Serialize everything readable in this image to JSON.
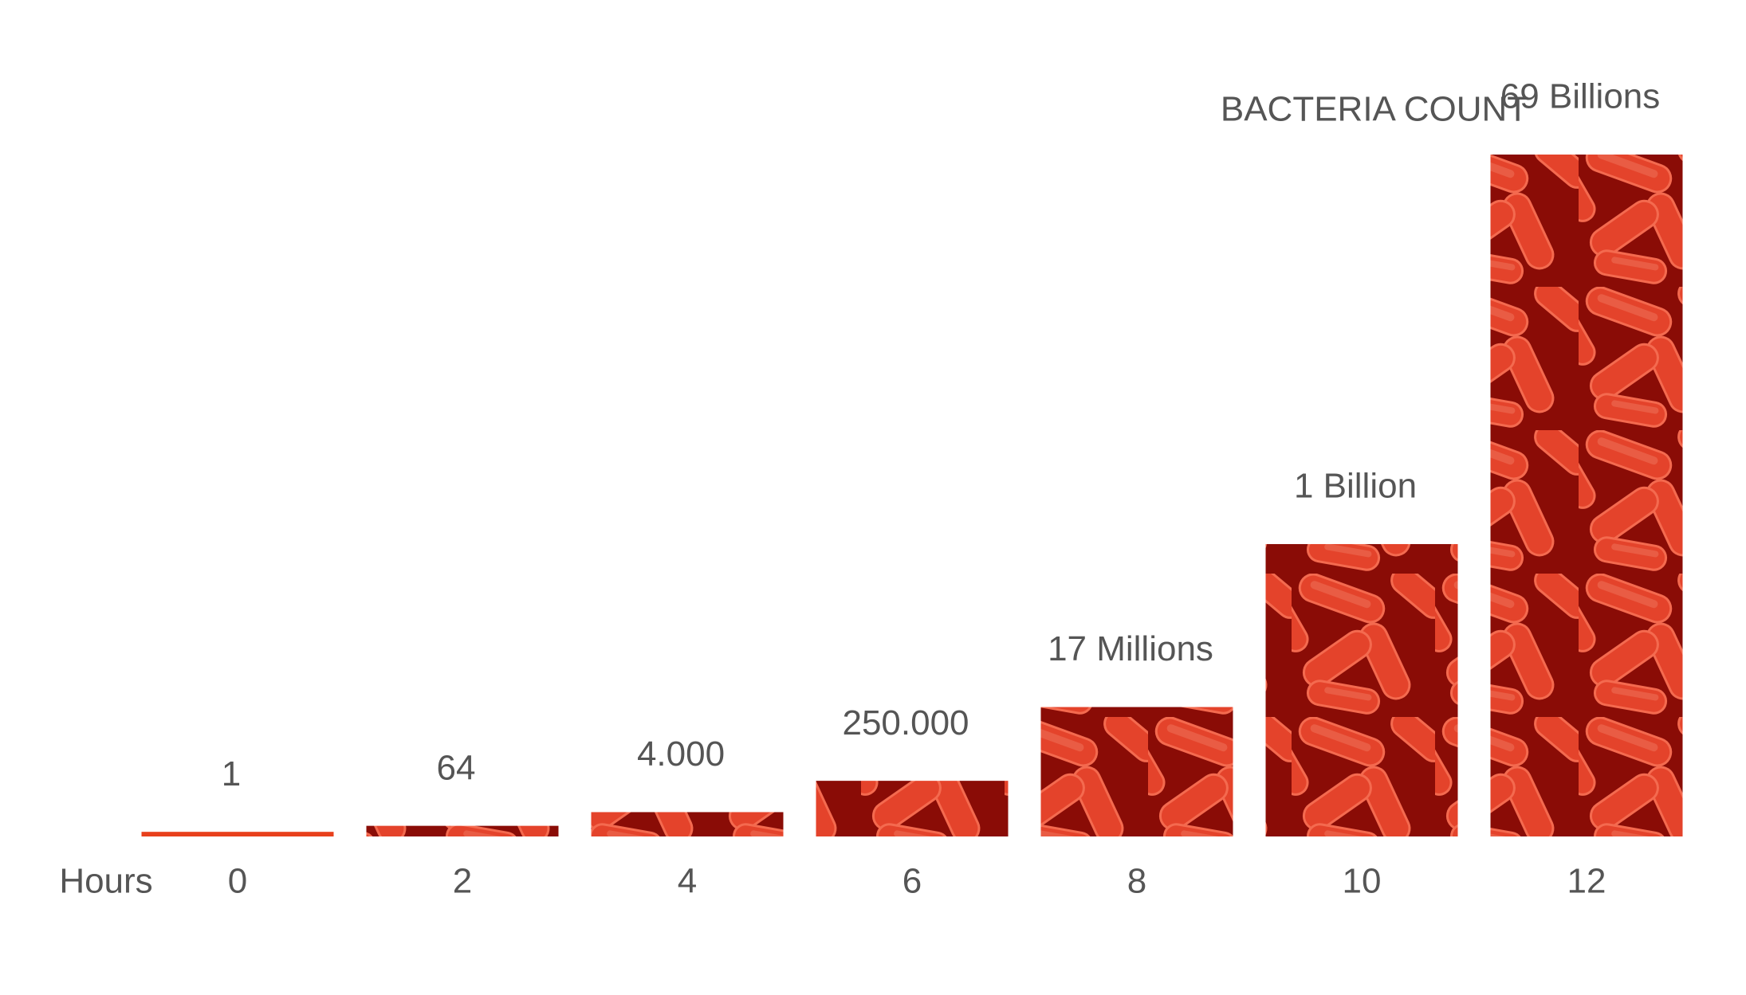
{
  "chart_data": {
    "type": "bar",
    "y_label": "BACTERIA COUNT",
    "x_label": "Hours",
    "categories": [
      "0",
      "2",
      "4",
      "6",
      "8",
      "10",
      "12"
    ],
    "values": [
      1,
      64,
      4000,
      250000,
      17000000,
      1000000000,
      69000000000
    ],
    "value_labels": [
      "1",
      "64",
      "4.000",
      "250.000",
      "17 Millions",
      "1 Billion",
      "69 Billions"
    ],
    "color": "#e8401c"
  }
}
